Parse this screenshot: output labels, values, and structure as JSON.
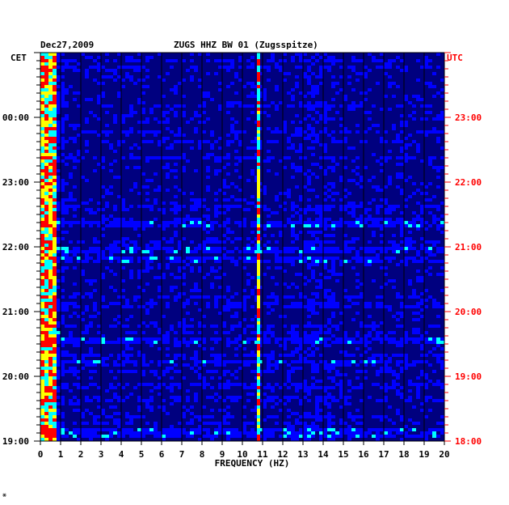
{
  "chart_data": {
    "type": "heatmap",
    "date": "Dec27,2009",
    "title": "ZUGS HHZ BW 01 (Zugsspitze)",
    "left_axis_title": "CET",
    "right_axis_title": "UTC",
    "xlabel": "FREQUENCY (HZ)",
    "x_ticks": [
      "0",
      "1",
      "2",
      "3",
      "4",
      "5",
      "6",
      "7",
      "8",
      "9",
      "10",
      "11",
      "12",
      "13",
      "14",
      "15",
      "16",
      "17",
      "18",
      "19",
      "20"
    ],
    "xlim": [
      0,
      20
    ],
    "cet_time_labels": [
      "00:00",
      "23:00",
      "22:00",
      "21:00",
      "20:00",
      "19:00"
    ],
    "utc_time_labels": [
      "23:00",
      "22:00",
      "21:00",
      "20:00",
      "19:00",
      "18:00"
    ],
    "colormap": [
      "#00007f",
      "#0000ff",
      "#00ffff",
      "#ffff00",
      "#ff0000"
    ],
    "features": [
      {
        "name": "low-frequency band",
        "freq_range_hz": [
          0,
          0.8
        ],
        "intensity": "high"
      },
      {
        "name": "narrow spectral line",
        "freq_hz": 10.8,
        "intensity": "high"
      },
      {
        "name": "intermittent band",
        "freq_range_hz": [
          12.5,
          14.5
        ],
        "intensity": "moderate"
      }
    ],
    "footer_mark": "⨳"
  }
}
